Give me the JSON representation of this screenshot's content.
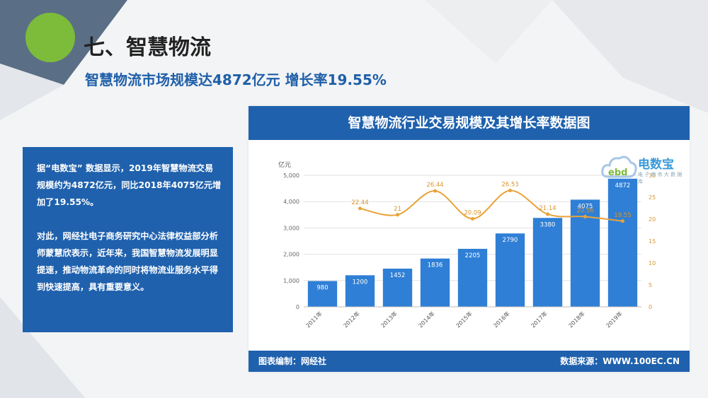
{
  "section_title": "七、智慧物流",
  "subtitle": "智慧物流市场规模达4872亿元 增长率19.55%",
  "description": {
    "paragraph_1": "据“电数宝” 数据显示，2019年智慧物流交易规模约为4872亿元，同比2018年4075亿元增加了19.55%。",
    "paragraph_2": "对此，网经社电子商务研究中心法律权益部分析师蒙慧欣表示，近年来，我国智慧物流发展明显提速，推动物流革命的同时将物流业服务水平得到快速提高，具有重要意义。"
  },
  "chart_panel": {
    "header": "智慧物流行业交易规模及其增长率数据图",
    "footer_left": "图表编制：网经社",
    "footer_right": "数据来源：WWW.100EC.CN",
    "logo_text": "电数宝",
    "logo_sub": "电 子 商 务 大 数 据 库",
    "logo_mark": "ebd"
  },
  "colors": {
    "primary_blue": "#1f61ad",
    "bar_blue": "#2f7fd6",
    "line_orange": "#e8a33a",
    "accent_green": "#7dbb3a"
  },
  "chart_data": {
    "type": "bar",
    "categories": [
      "2011年",
      "2012年",
      "2013年",
      "2014年",
      "2015年",
      "2016年",
      "2017年",
      "2018年",
      "2019年"
    ],
    "series": [
      {
        "type": "bar",
        "axis": "left",
        "values": [
          980,
          1200,
          1452,
          1836,
          2205,
          2790,
          3380,
          4075,
          4872
        ]
      },
      {
        "type": "line",
        "axis": "right",
        "values": [
          null,
          22.44,
          21,
          26.44,
          20.09,
          26.53,
          21.14,
          20.56,
          19.55
        ]
      }
    ],
    "bar_labels": [
      "980",
      "1200",
      "1452",
      "1836",
      "2205",
      "2790",
      "3380",
      "4075",
      "4872"
    ],
    "line_labels": [
      "",
      "22.44",
      "21",
      "26.44",
      "20.09",
      "26.53",
      "21.14",
      "20.56",
      "19.55"
    ],
    "y_left_unit": "亿元",
    "y_left_ticks": [
      "0",
      "1,000",
      "2,000",
      "3,000",
      "4,000",
      "5,000"
    ],
    "y_left_range": [
      0,
      5000
    ],
    "y_right_ticks": [
      "0",
      "5",
      "10",
      "15",
      "20",
      "25",
      "30"
    ],
    "y_right_range": [
      0,
      30
    ],
    "grid": true
  }
}
